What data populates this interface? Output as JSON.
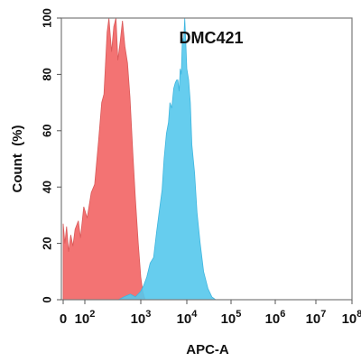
{
  "chart_data": {
    "type": "area",
    "title": "DMC421",
    "xlabel": "APC-A",
    "ylabel": "Count  (%)",
    "x_scale": "biexponential",
    "xlim": [
      0,
      100000000
    ],
    "ylim": [
      0,
      100
    ],
    "x_ticks": [
      {
        "value": 0,
        "base": "0",
        "exp": ""
      },
      {
        "value": 100,
        "base": "10",
        "exp": "2"
      },
      {
        "value": 1000,
        "base": "10",
        "exp": "3"
      },
      {
        "value": 10000,
        "base": "10",
        "exp": "4"
      },
      {
        "value": 100000,
        "base": "10",
        "exp": "5"
      },
      {
        "value": 1000000,
        "base": "10",
        "exp": "6"
      },
      {
        "value": 10000000,
        "base": "10",
        "exp": "7"
      },
      {
        "value": 100000000,
        "base": "10",
        "exp": "8"
      }
    ],
    "y_ticks": [
      0,
      20,
      40,
      60,
      80,
      100
    ],
    "grid": false,
    "series": [
      {
        "color": "#f26b6b",
        "points": [
          [
            0,
            27
          ],
          [
            8,
            20
          ],
          [
            16,
            26
          ],
          [
            25,
            17
          ],
          [
            35,
            23
          ],
          [
            45,
            19
          ],
          [
            55,
            25
          ],
          [
            70,
            28
          ],
          [
            80,
            22
          ],
          [
            95,
            33
          ],
          [
            110,
            29
          ],
          [
            130,
            38
          ],
          [
            150,
            41
          ],
          [
            175,
            56
          ],
          [
            200,
            70
          ],
          [
            220,
            73
          ],
          [
            250,
            95
          ],
          [
            270,
            100
          ],
          [
            300,
            88
          ],
          [
            330,
            97
          ],
          [
            360,
            100
          ],
          [
            390,
            85
          ],
          [
            430,
            92
          ],
          [
            470,
            99
          ],
          [
            520,
            90
          ],
          [
            580,
            84
          ],
          [
            640,
            72
          ],
          [
            720,
            52
          ],
          [
            800,
            36
          ],
          [
            900,
            20
          ],
          [
            1000,
            8
          ],
          [
            1100,
            3
          ],
          [
            1250,
            0
          ]
        ]
      },
      {
        "color": "#55c8ec",
        "points": [
          [
            400,
            0
          ],
          [
            500,
            1
          ],
          [
            650,
            2
          ],
          [
            800,
            1
          ],
          [
            1000,
            3
          ],
          [
            1150,
            5
          ],
          [
            1350,
            8
          ],
          [
            1600,
            13
          ],
          [
            1900,
            15
          ],
          [
            2200,
            24
          ],
          [
            2500,
            31
          ],
          [
            2900,
            39
          ],
          [
            3200,
            50
          ],
          [
            3600,
            59
          ],
          [
            4000,
            63
          ],
          [
            4300,
            70
          ],
          [
            4700,
            68
          ],
          [
            5200,
            75
          ],
          [
            5600,
            77
          ],
          [
            6000,
            78
          ],
          [
            6400,
            78
          ],
          [
            6800,
            74
          ],
          [
            7200,
            82
          ],
          [
            7600,
            80
          ],
          [
            8000,
            93
          ],
          [
            8500,
            91
          ],
          [
            9000,
            100
          ],
          [
            9500,
            91
          ],
          [
            10000,
            82
          ],
          [
            11000,
            78
          ],
          [
            12000,
            70
          ],
          [
            13000,
            55
          ],
          [
            15000,
            45
          ],
          [
            17000,
            31
          ],
          [
            20000,
            20
          ],
          [
            24000,
            10
          ],
          [
            30000,
            4
          ],
          [
            37000,
            1
          ],
          [
            45000,
            0
          ]
        ]
      }
    ]
  }
}
